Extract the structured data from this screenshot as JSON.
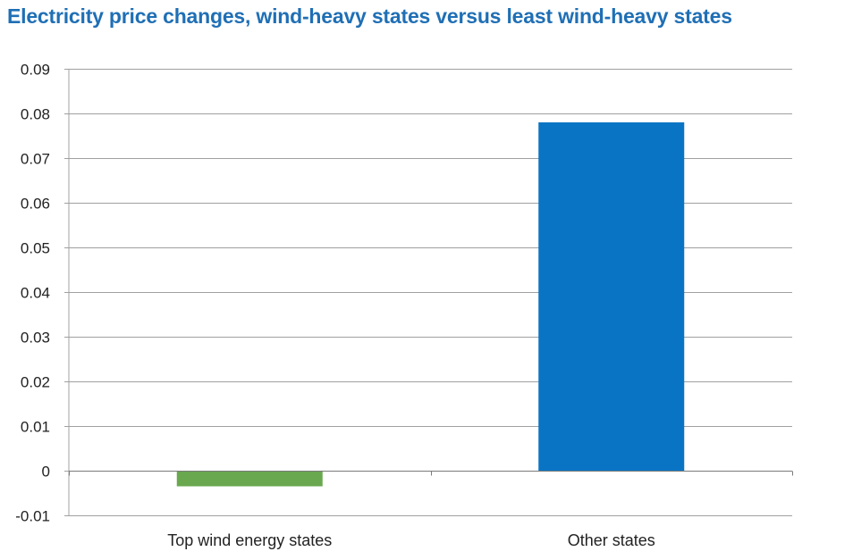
{
  "chart_data": {
    "type": "bar",
    "title": "Electricity price changes, wind-heavy states versus least wind-heavy states",
    "xlabel": "",
    "ylabel": "",
    "categories": [
      "Top wind energy states",
      "Other states"
    ],
    "values": [
      -0.0035,
      0.078
    ],
    "bar_colors": [
      "#6aa84f",
      "#0a74c4"
    ],
    "ylim": [
      -0.01,
      0.09
    ],
    "yticks": [
      "-0.01",
      "0",
      "0.01",
      "0.02",
      "0.03",
      "0.04",
      "0.05",
      "0.06",
      "0.07",
      "0.08",
      "0.09"
    ],
    "grid": true,
    "legend": "none"
  },
  "colors": {
    "title": "#1f6fb5",
    "grid": "#a0a0a0"
  }
}
